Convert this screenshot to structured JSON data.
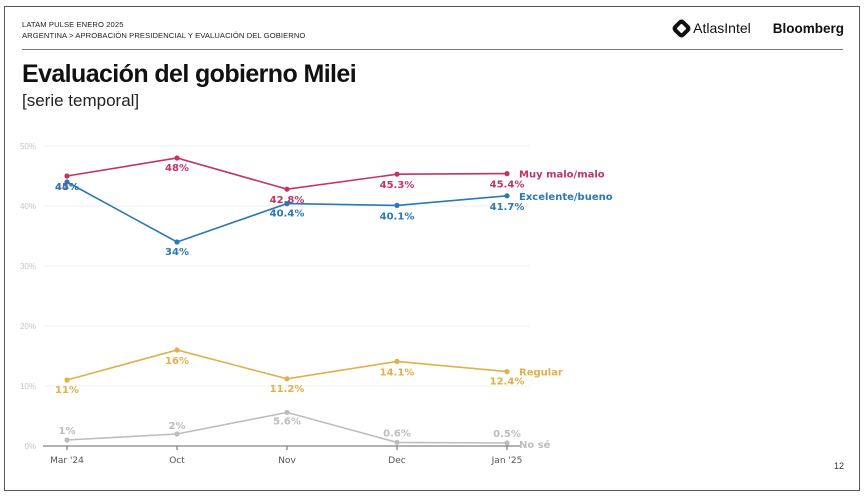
{
  "header": {
    "kicker_line1": "LATAM PULSE ENERO 2025",
    "kicker_line2": "ARGENTINA > APROBACIÓN PRESIDENCIAL Y EVALUACIÓN DEL GOBIERNO",
    "logo_atlas": "AtlasIntel",
    "logo_bloomberg": "Bloomberg"
  },
  "page_number": "12",
  "chart_data": {
    "type": "line",
    "title": "Evaluación del gobierno Milei",
    "subtitle": "[serie temporal]",
    "xlabel": "",
    "ylabel": "",
    "x": [
      "Mar '24",
      "Oct",
      "Nov",
      "Dec",
      "Jan '25"
    ],
    "ylim": [
      0,
      50
    ],
    "yticks": [
      0,
      10,
      20,
      30,
      40,
      50
    ],
    "ytick_labels": [
      "0%",
      "10%",
      "20%",
      "30%",
      "40%",
      "50%"
    ],
    "grid": true,
    "legend": "inline-right",
    "series": [
      {
        "name": "Muy malo/malo",
        "color": "#c2336a",
        "values": [
          45,
          48,
          42.8,
          45.3,
          45.4
        ],
        "labels": [
          "45%",
          "48%",
          "42.8%",
          "45.3%",
          "45.4%"
        ]
      },
      {
        "name": "Excelente/bueno",
        "color": "#2a78b5",
        "values": [
          44,
          34,
          40.4,
          40.1,
          41.7
        ],
        "labels": [
          "44%",
          "34%",
          "40.4%",
          "40.1%",
          "41.7%"
        ]
      },
      {
        "name": "Regular",
        "color": "#e0b04a",
        "values": [
          11,
          16,
          11.2,
          14.1,
          12.4
        ],
        "labels": [
          "11%",
          "16%",
          "11.2%",
          "14.1%",
          "12.4%"
        ]
      },
      {
        "name": "No sé",
        "color": "#bdbdbd",
        "values": [
          1,
          2,
          5.6,
          0.6,
          0.5
        ],
        "labels": [
          "1%",
          "2%",
          "5.6%",
          "0.6%",
          "0.5%"
        ]
      }
    ]
  }
}
